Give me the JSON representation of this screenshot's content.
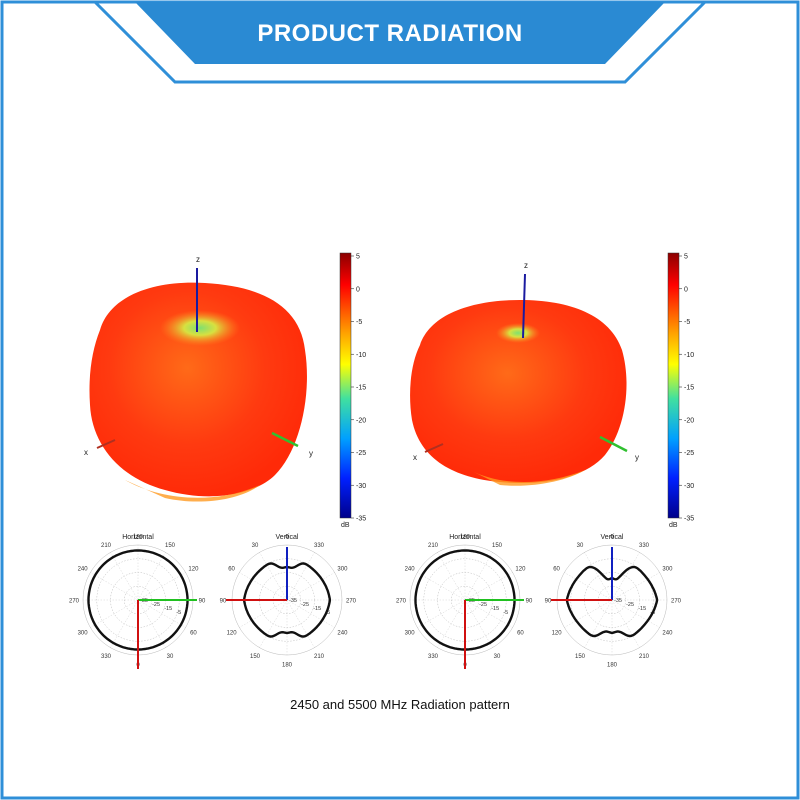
{
  "header": {
    "title": "PRODUCT RADIATION"
  },
  "caption": "2450 and 5500 MHz Radiation pattern",
  "colors": {
    "frame": "#2f8fd8",
    "banner": "#2a8ad3",
    "pattern_hot": "#ff3a10",
    "pattern_warm": "#ffb000",
    "null_green": "#7fe070"
  },
  "pattern_3d": {
    "axis_labels": {
      "x": "x",
      "y": "y",
      "z": "z"
    },
    "colorbar": {
      "ticks": [
        "5",
        "0",
        "-5",
        "-10",
        "-15",
        "-20",
        "-25",
        "-30",
        "-35"
      ],
      "unit": "dB"
    }
  },
  "polar": {
    "horizontal_title": "Horizontal",
    "vertical_title": "Vertical",
    "horizontal_angles": [
      "180",
      "150",
      "120",
      "90",
      "60",
      "30",
      "0",
      "330",
      "300",
      "270",
      "240",
      "210"
    ],
    "vertical_angles": [
      "0",
      "330",
      "300",
      "270",
      "240",
      "210",
      "180",
      "150",
      "120",
      "90",
      "60",
      "30"
    ],
    "radial_labels": [
      "-35",
      "-25",
      "-15",
      "-5"
    ]
  }
}
